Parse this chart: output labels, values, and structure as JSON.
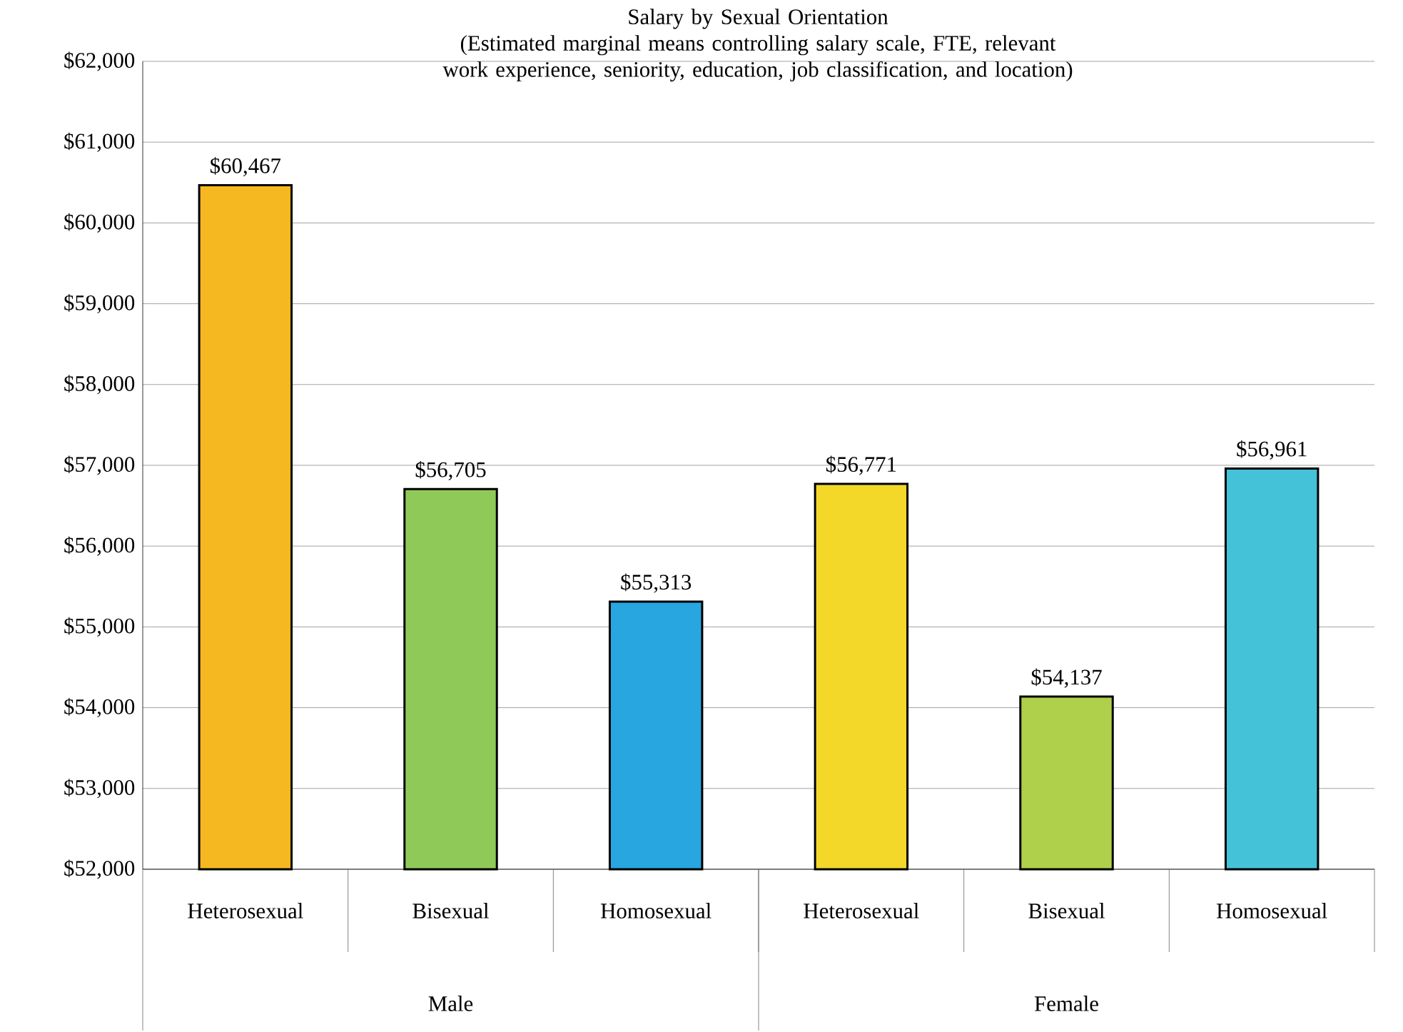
{
  "chart_data": {
    "type": "bar",
    "title": "Salary by Sexual Orientation",
    "subtitle": "(Estimated marginal means controlling salary scale, FTE, relevant work experience, seniority, education, job classification, and location)",
    "categories": [
      "Heterosexual",
      "Bisexual",
      "Homosexual",
      "Heterosexual",
      "Bisexual",
      "Homosexual"
    ],
    "values": [
      60467,
      56705,
      55313,
      56771,
      54137,
      56961
    ],
    "colors": [
      "#f5b820",
      "#8fca58",
      "#27a6e0",
      "#f3d82a",
      "#afd04a",
      "#44c2d8"
    ],
    "value_labels": [
      "$60,467",
      "$56,705",
      "$55,313",
      "$56,771",
      "$54,137",
      "$56,961"
    ],
    "annotations": [
      "Male",
      "Female"
    ],
    "ylim": [
      52000,
      62000
    ],
    "yticks": [
      {
        "value": 52000,
        "label": "$52,000"
      },
      {
        "value": 53000,
        "label": "$53,000"
      },
      {
        "value": 54000,
        "label": "$54,000"
      },
      {
        "value": 55000,
        "label": "$55,000"
      },
      {
        "value": 56000,
        "label": "$56,000"
      },
      {
        "value": 57000,
        "label": "$57,000"
      },
      {
        "value": 58000,
        "label": "$58,000"
      },
      {
        "value": 59000,
        "label": "$59,000"
      },
      {
        "value": 60000,
        "label": "$60,000"
      },
      {
        "value": 61000,
        "label": "$61,000"
      },
      {
        "value": 62000,
        "label": "$62,000"
      }
    ],
    "grid": "y"
  }
}
